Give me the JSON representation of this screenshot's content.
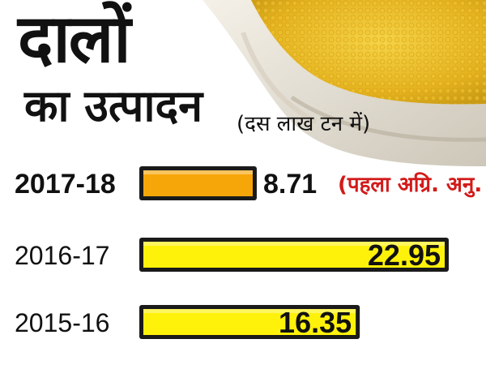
{
  "header": {
    "title_line1": "दालों",
    "title_line2": "का उत्पादन",
    "unit": "(दस लाख टन में)"
  },
  "colors": {
    "highlight_bar": "#F7A60A",
    "bar": "#FFF20A",
    "note": "#D21A1A",
    "text": "#111111"
  },
  "chart_data": {
    "type": "bar",
    "orientation": "horizontal",
    "title": "दालों का उत्पादन",
    "unit": "(दस लाख टन में)",
    "categories": [
      "2017-18",
      "2016-17",
      "2015-16"
    ],
    "values": [
      8.71,
      22.95,
      16.35
    ],
    "value_labels": [
      "8.71",
      "22.95",
      "16.35"
    ],
    "annotations": [
      {
        "category": "2017-18",
        "text": "(पहला अग्रि. अनु."
      }
    ],
    "highlight_category": "2017-18",
    "xlim": [
      0,
      22.95
    ],
    "grid": false,
    "legend": "none"
  }
}
